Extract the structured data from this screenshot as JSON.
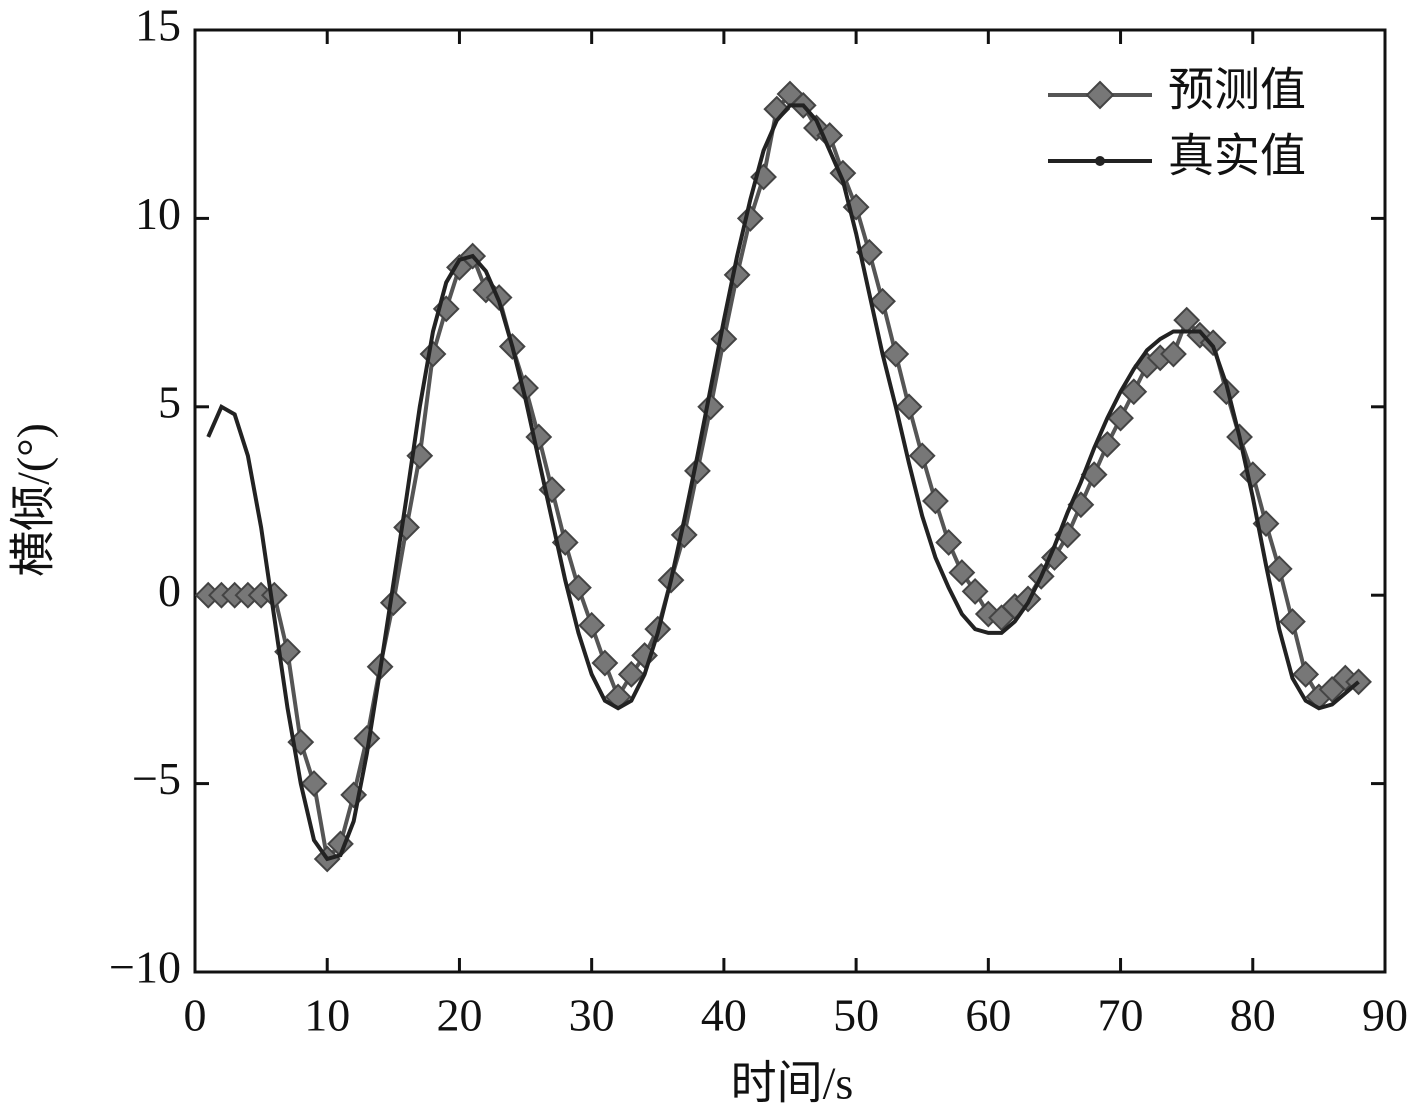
{
  "chart_data": {
    "type": "line",
    "xlabel": "时间/s",
    "ylabel": "横倾/(°)",
    "x": [
      1,
      2,
      3,
      4,
      5,
      6,
      7,
      8,
      9,
      10,
      11,
      12,
      13,
      14,
      15,
      16,
      17,
      18,
      19,
      20,
      21,
      22,
      23,
      24,
      25,
      26,
      27,
      28,
      29,
      30,
      31,
      32,
      33,
      34,
      35,
      36,
      37,
      38,
      39,
      40,
      41,
      42,
      43,
      44,
      45,
      46,
      47,
      48,
      49,
      50,
      51,
      52,
      53,
      54,
      55,
      56,
      57,
      58,
      59,
      60,
      61,
      62,
      63,
      64,
      65,
      66,
      67,
      68,
      69,
      70,
      71,
      72,
      73,
      74,
      75,
      76,
      77,
      78,
      79,
      80,
      81,
      82,
      83,
      84,
      85,
      86,
      87,
      88
    ],
    "series": [
      {
        "name": "预测值",
        "color": "#555555",
        "marker": "diamond",
        "values": [
          0,
          0,
          0,
          0,
          0,
          0,
          -1.5,
          -3.9,
          -5.0,
          -7.0,
          -6.6,
          -5.3,
          -3.8,
          -1.9,
          -0.2,
          1.8,
          3.7,
          6.4,
          7.6,
          8.7,
          9.0,
          8.1,
          7.9,
          6.6,
          5.5,
          4.2,
          2.8,
          1.4,
          0.2,
          -0.8,
          -1.8,
          -2.7,
          -2.1,
          -1.6,
          -0.9,
          0.4,
          1.6,
          3.3,
          5.0,
          6.8,
          8.5,
          10.0,
          11.1,
          12.9,
          13.3,
          13.0,
          12.4,
          12.2,
          11.2,
          10.3,
          9.1,
          7.8,
          6.4,
          5.0,
          3.7,
          2.5,
          1.4,
          0.6,
          0.1,
          -0.5,
          -0.6,
          -0.3,
          -0.1,
          0.5,
          1.0,
          1.6,
          2.4,
          3.2,
          4.0,
          4.7,
          5.4,
          6.1,
          6.3,
          6.4,
          7.3,
          6.9,
          6.7,
          5.4,
          4.2,
          3.2,
          1.9,
          0.7,
          -0.7,
          -2.1,
          -2.7,
          -2.5,
          -2.2,
          -2.3
        ]
      },
      {
        "name": "真实值",
        "color": "#222222",
        "marker": "dot",
        "values": [
          4.2,
          5.0,
          4.8,
          3.7,
          1.8,
          -0.6,
          -3.0,
          -5.0,
          -6.5,
          -7.0,
          -6.9,
          -6.0,
          -4.2,
          -2.0,
          0.3,
          2.6,
          5.0,
          7.0,
          8.3,
          8.9,
          9.0,
          8.6,
          7.8,
          6.6,
          5.2,
          3.6,
          2.0,
          0.4,
          -1.0,
          -2.1,
          -2.8,
          -3.0,
          -2.8,
          -2.1,
          -1.0,
          0.4,
          2.0,
          3.7,
          5.5,
          7.3,
          9.0,
          10.5,
          11.8,
          12.6,
          13.0,
          13.0,
          12.6,
          11.8,
          11.0,
          9.6,
          8.0,
          6.4,
          5.0,
          3.5,
          2.1,
          1.0,
          0.2,
          -0.5,
          -0.9,
          -1.0,
          -1.0,
          -0.7,
          -0.2,
          0.5,
          1.3,
          2.2,
          3.0,
          3.9,
          4.7,
          5.4,
          6.0,
          6.5,
          6.8,
          7.0,
          7.0,
          7.0,
          6.6,
          5.6,
          4.2,
          2.6,
          0.8,
          -0.9,
          -2.2,
          -2.8,
          -3.0,
          -2.9,
          -2.6,
          -2.3
        ]
      }
    ],
    "xlim": [
      0,
      90
    ],
    "xticks": [
      0,
      10,
      20,
      30,
      40,
      50,
      60,
      70,
      80,
      90
    ],
    "ylim": [
      -10,
      15
    ],
    "yticks": [
      {
        "value": -10,
        "label": "−10"
      },
      {
        "value": -5,
        "label": "−5"
      },
      0,
      5,
      10,
      15
    ],
    "grid": false,
    "legend": "upper right"
  }
}
